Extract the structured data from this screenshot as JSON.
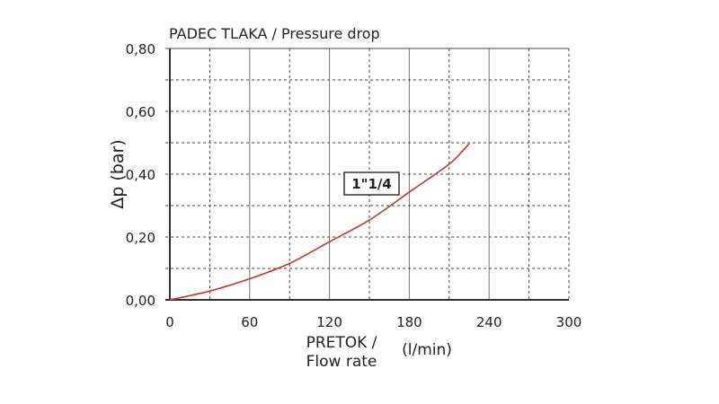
{
  "chart_data": {
    "type": "line",
    "title": "PADEC TLAKA / Pressure drop",
    "xlabel_line1": "PRETOK /",
    "xlabel_line2": "Flow rate",
    "xunit": "(l/min)",
    "ylabel": "Δp  (bar)",
    "xlim": [
      0,
      300
    ],
    "ylim": [
      0,
      0.8
    ],
    "xticks": [
      "0",
      "60",
      "120",
      "180",
      "240",
      "300"
    ],
    "yticks": [
      "0,00",
      "0,20",
      "0,40",
      "0,60",
      "0,80"
    ],
    "grid": true,
    "series": [
      {
        "label": "1\"1/4",
        "color": "#c0392b",
        "x": [
          0,
          30,
          60,
          90,
          120,
          150,
          180,
          210,
          225
        ],
        "y": [
          0,
          0.028,
          0.067,
          0.116,
          0.185,
          0.254,
          0.343,
          0.432,
          0.497
        ]
      }
    ]
  }
}
